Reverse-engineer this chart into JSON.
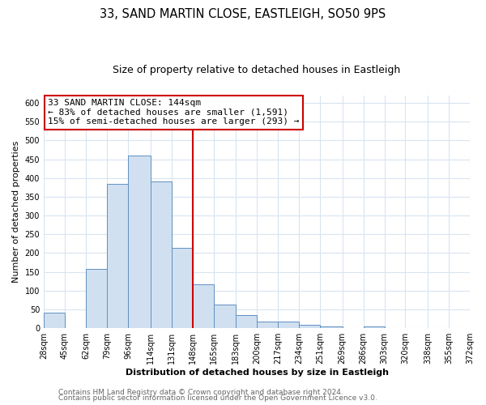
{
  "title": "33, SAND MARTIN CLOSE, EASTLEIGH, SO50 9PS",
  "subtitle": "Size of property relative to detached houses in Eastleigh",
  "xlabel": "Distribution of detached houses by size in Eastleigh",
  "ylabel": "Number of detached properties",
  "bin_edges": [
    28,
    45,
    62,
    79,
    96,
    114,
    131,
    148,
    165,
    183,
    200,
    217,
    234,
    251,
    269,
    286,
    303,
    320,
    338,
    355,
    372
  ],
  "bin_heights": [
    42,
    0,
    158,
    385,
    460,
    390,
    215,
    118,
    63,
    35,
    17,
    17,
    8,
    4,
    0,
    5,
    0,
    0,
    0,
    0
  ],
  "bar_facecolor": "#d0e0f0",
  "bar_edgecolor": "#6090c0",
  "vline_x": 148,
  "vline_color": "#cc0000",
  "annotation_title": "33 SAND MARTIN CLOSE: 144sqm",
  "annotation_line1": "← 83% of detached houses are smaller (1,591)",
  "annotation_line2": "15% of semi-detached houses are larger (293) →",
  "annotation_box_edgecolor": "#cc0000",
  "ylim": [
    0,
    620
  ],
  "yticks": [
    0,
    50,
    100,
    150,
    200,
    250,
    300,
    350,
    400,
    450,
    500,
    550,
    600
  ],
  "tick_labels": [
    "28sqm",
    "45sqm",
    "62sqm",
    "79sqm",
    "96sqm",
    "114sqm",
    "131sqm",
    "148sqm",
    "165sqm",
    "183sqm",
    "200sqm",
    "217sqm",
    "234sqm",
    "251sqm",
    "269sqm",
    "286sqm",
    "303sqm",
    "320sqm",
    "338sqm",
    "355sqm",
    "372sqm"
  ],
  "footer1": "Contains HM Land Registry data © Crown copyright and database right 2024.",
  "footer2": "Contains public sector information licensed under the Open Government Licence v3.0.",
  "fig_background": "#ffffff",
  "plot_background": "#ffffff",
  "grid_color": "#d8e4f0",
  "title_fontsize": 10.5,
  "subtitle_fontsize": 9,
  "axis_label_fontsize": 8,
  "tick_fontsize": 7,
  "annotation_fontsize": 8,
  "footer_fontsize": 6.5
}
